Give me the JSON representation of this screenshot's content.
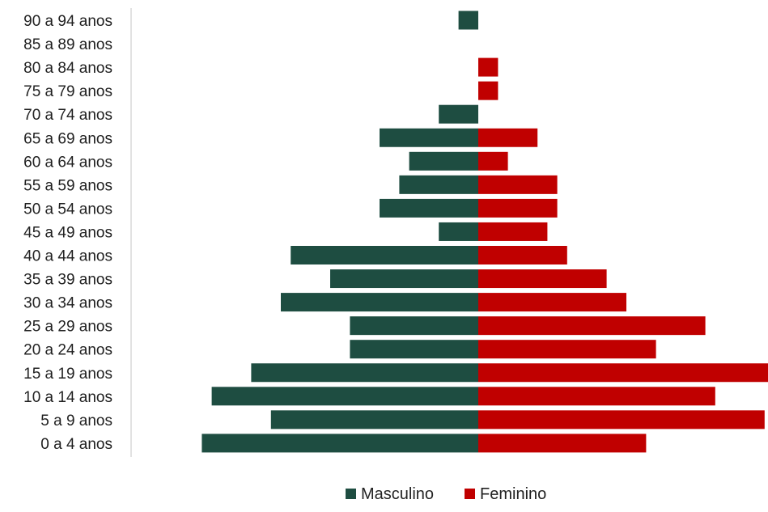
{
  "chart_data": {
    "type": "bar",
    "orientation": "horizontal",
    "layout": "population-pyramid",
    "categories": [
      "90 a 94 anos",
      "85 a 89 anos",
      "80 a 84 anos",
      "75 a 79 anos",
      "70 a 74 anos",
      "65 a 69 anos",
      "60 a 64 anos",
      "55 a 59 anos",
      "50 a 54 anos",
      "45 a 49 anos",
      "40 a 44 anos",
      "35 a 39 anos",
      "30 a 34 anos",
      "25 a 29 anos",
      "20 a 24 anos",
      "15 a 19 anos",
      "10 a 14 anos",
      "5 a 9 anos",
      "0 a 4 anos"
    ],
    "series": [
      {
        "name": "Masculino",
        "color": "#1e4d41",
        "side": "left",
        "values": [
          2,
          0,
          0,
          0,
          4,
          10,
          7,
          8,
          10,
          4,
          19,
          15,
          20,
          13,
          13,
          23,
          27,
          21,
          28
        ]
      },
      {
        "name": "Feminino",
        "color": "#c00000",
        "side": "right",
        "values": [
          0,
          0,
          2,
          2,
          0,
          6,
          3,
          8,
          8,
          7,
          9,
          13,
          15,
          23,
          18,
          30,
          24,
          29,
          17
        ]
      }
    ],
    "xlim": [
      -30,
      30
    ],
    "grid": false,
    "legend": {
      "position": "bottom"
    }
  }
}
